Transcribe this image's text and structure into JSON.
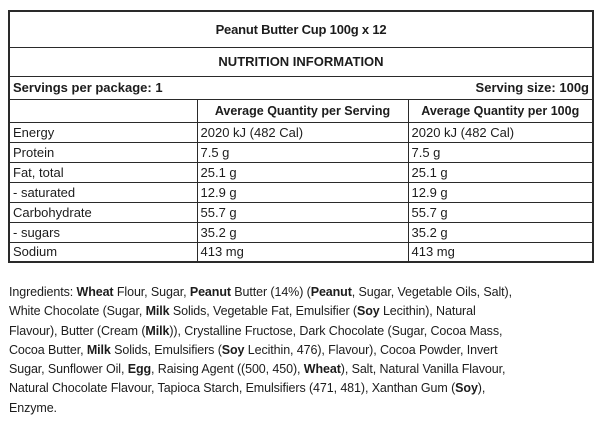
{
  "title": "Peanut Butter Cup 100g x 12",
  "nutrition_header": "NUTRITION INFORMATION",
  "servings": {
    "per_package": "Servings per package: 1",
    "serving_size": "Serving size: 100g"
  },
  "table": {
    "columns": [
      "",
      "Average Quantity per Serving",
      "Average Quantity per 100g"
    ],
    "rows": [
      {
        "label": "Energy",
        "per_serving": "2020 kJ (482 Cal)",
        "per_100g": "2020 kJ (482 Cal)"
      },
      {
        "label": "Protein",
        "per_serving": "7.5 g",
        "per_100g": "7.5 g"
      },
      {
        "label": "Fat, total",
        "per_serving": "25.1 g",
        "per_100g": "25.1 g"
      },
      {
        "label": "- saturated",
        "per_serving": "12.9 g",
        "per_100g": "12.9 g"
      },
      {
        "label": "Carbohydrate",
        "per_serving": "55.7 g",
        "per_100g": "55.7 g"
      },
      {
        "label": "- sugars",
        "per_serving": "35.2 g",
        "per_100g": "35.2 g"
      },
      {
        "label": "Sodium",
        "per_serving": "413 mg",
        "per_100g": "413 mg"
      }
    ]
  },
  "ingredients": {
    "lines": [
      [
        {
          "t": "Ingredients: "
        },
        {
          "t": "Wheat",
          "b": true
        },
        {
          "t": " Flour, Sugar, "
        },
        {
          "t": "Peanut",
          "b": true
        },
        {
          "t": " Butter (14%) ("
        },
        {
          "t": "Peanut",
          "b": true
        },
        {
          "t": ", Sugar, Vegetable Oils, Salt),"
        }
      ],
      [
        {
          "t": "White Chocolate (Sugar, "
        },
        {
          "t": "Milk",
          "b": true
        },
        {
          "t": " Solids, Vegetable Fat, Emulsifier ("
        },
        {
          "t": "Soy",
          "b": true
        },
        {
          "t": " Lecithin), Natural"
        }
      ],
      [
        {
          "t": "Flavour), Butter (Cream ("
        },
        {
          "t": "Milk",
          "b": true
        },
        {
          "t": ")), Crystalline Fructose, Dark Chocolate (Sugar, Cocoa Mass,"
        }
      ],
      [
        {
          "t": "Cocoa Butter, "
        },
        {
          "t": "Milk",
          "b": true
        },
        {
          "t": " Solids, Emulsifiers ("
        },
        {
          "t": "Soy",
          "b": true
        },
        {
          "t": " Lecithin, 476), Flavour), Cocoa Powder, Invert"
        }
      ],
      [
        {
          "t": "Sugar, Sunflower Oil, "
        },
        {
          "t": "Egg",
          "b": true
        },
        {
          "t": ", Raising Agent ((500, 450), "
        },
        {
          "t": "Wheat",
          "b": true
        },
        {
          "t": "), Salt, Natural Vanilla Flavour,"
        }
      ],
      [
        {
          "t": "Natural Chocolate Flavour, Tapioca Starch, Emulsifiers (471, 481), Xanthan Gum ("
        },
        {
          "t": "Soy",
          "b": true
        },
        {
          "t": "),"
        }
      ],
      [
        {
          "t": "Enzyme."
        }
      ]
    ]
  },
  "colors": {
    "border": "#2a2a2a",
    "text": "#1c1c1c",
    "background": "#ffffff"
  }
}
